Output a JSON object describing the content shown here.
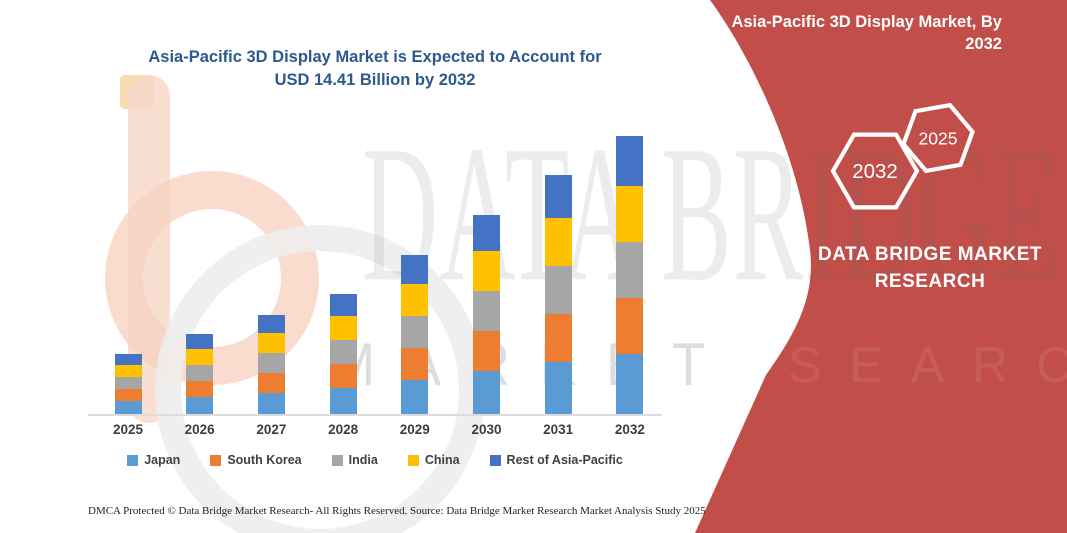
{
  "chart": {
    "title": "Asia-Pacific 3D Display Market is Expected to Account for USD 14.41 Billion by 2032",
    "title_color": "#2d5a8c"
  },
  "chart_data": {
    "type": "bar",
    "stacked": true,
    "title": "Asia-Pacific 3D Display Market is Expected to Account for USD 14.41 Billion by 2032",
    "unit": "USD Billion",
    "categories": [
      "2025",
      "2026",
      "2027",
      "2028",
      "2029",
      "2030",
      "2031",
      "2032"
    ],
    "series": [
      {
        "name": "Japan",
        "color": "#5b9bd5",
        "values": [
          0.7,
          0.92,
          1.14,
          1.39,
          1.83,
          2.29,
          2.75,
          3.17
        ]
      },
      {
        "name": "South Korea",
        "color": "#ed7d31",
        "values": [
          0.64,
          0.84,
          1.04,
          1.26,
          1.66,
          2.08,
          2.5,
          2.88
        ]
      },
      {
        "name": "India",
        "color": "#a6a6a6",
        "values": [
          0.64,
          0.84,
          1.04,
          1.26,
          1.66,
          2.08,
          2.5,
          2.88
        ]
      },
      {
        "name": "China",
        "color": "#ffc000",
        "values": [
          0.64,
          0.84,
          1.04,
          1.26,
          1.66,
          2.08,
          2.5,
          2.88
        ]
      },
      {
        "name": "Rest of Asia-Pacific",
        "color": "#4472c4",
        "values": [
          0.58,
          0.76,
          0.94,
          1.13,
          1.49,
          1.87,
          2.25,
          2.6
        ]
      }
    ],
    "totals": [
      3.2,
      4.2,
      5.2,
      6.3,
      8.3,
      10.4,
      12.5,
      14.41
    ],
    "ylim": [
      0,
      14.41
    ],
    "grid": false,
    "legend_position": "bottom"
  },
  "side_panel": {
    "background": "#c24e49",
    "title_lines": [
      "Asia-Pacific 3D Display Market, By",
      "2032"
    ],
    "badge_large": "2032",
    "badge_small": "2025",
    "brand_lines": [
      "DATA BRIDGE MARKET",
      "RESEARCH"
    ]
  },
  "watermark": {
    "row1": "DATA BRIDGE",
    "row2": "MARKET RESEARCH",
    "row2_red": "SEARCH"
  },
  "footer": {
    "dmca": "DMCA Protected © Data Bridge Market Research-  All Rights Reserved.",
    "source": "Source: Data Bridge Market Research  Market Analysis Study 2025"
  },
  "colors": {
    "accent_red": "#c24e49",
    "title_blue": "#2d5a8c",
    "axis_label": "#3d3d3d"
  }
}
